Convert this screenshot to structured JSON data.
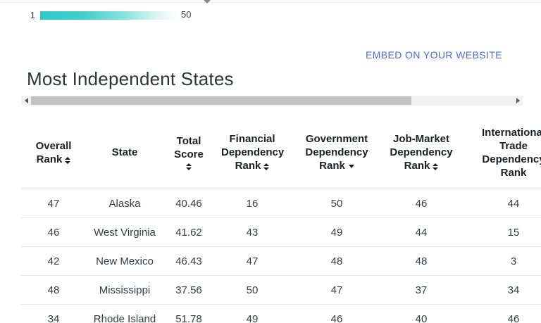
{
  "colors": {
    "accent_teal": "#2ec9c7",
    "link_blue": "#4a6be0"
  },
  "legend": {
    "min_label": "1",
    "max_label": "50"
  },
  "embed": {
    "label": "EMBED ON YOUR WEBSITE"
  },
  "title": "Most Independent States",
  "table": {
    "columns": [
      {
        "label": "Overall Rank",
        "sort": "both"
      },
      {
        "label": "State",
        "sort": "none"
      },
      {
        "label": "Total Score",
        "sort": "both"
      },
      {
        "label": "Financial Dependency Rank",
        "sort": "both"
      },
      {
        "label": "Government Dependency Rank",
        "sort": "desc"
      },
      {
        "label": "Job-Market Dependency Rank",
        "sort": "both"
      },
      {
        "label": "International Trade Dependency Rank",
        "sort": "none"
      }
    ],
    "rows": [
      [
        "47",
        "Alaska",
        "40.46",
        "16",
        "50",
        "46",
        "44"
      ],
      [
        "46",
        "West Virginia",
        "41.62",
        "43",
        "49",
        "44",
        "15"
      ],
      [
        "42",
        "New Mexico",
        "46.43",
        "47",
        "48",
        "48",
        "3"
      ],
      [
        "48",
        "Mississippi",
        "37.56",
        "50",
        "47",
        "37",
        "34"
      ],
      [
        "34",
        "Rhode Island",
        "51.78",
        "49",
        "46",
        "40",
        "46"
      ]
    ]
  }
}
